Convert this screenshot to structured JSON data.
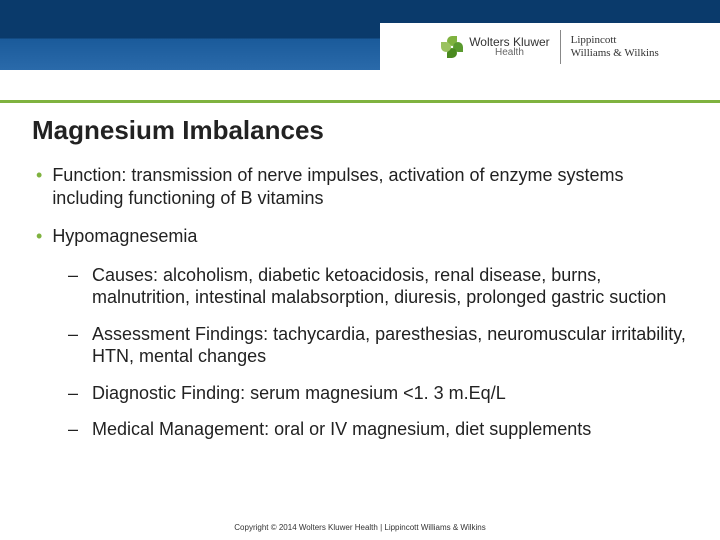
{
  "header": {
    "brand1_name": "Wolters Kluwer",
    "brand1_sub": "Health",
    "brand2_line1": "Lippincott",
    "brand2_line2": "Williams & Wilkins"
  },
  "title": "Magnesium Imbalances",
  "bullets": [
    {
      "text": "Function: transmission of nerve impulses, activation of enzyme systems including functioning of B vitamins",
      "sub": []
    },
    {
      "text": "Hypomagnesemia",
      "sub": [
        "Causes: alcoholism, diabetic ketoacidosis, renal disease, burns, malnutrition, intestinal malabsorption, diuresis, prolonged gastric suction",
        "Assessment Findings: tachycardia, paresthesias, neuromuscular irritability, HTN, mental changes",
        "Diagnostic Finding: serum magnesium <1. 3 m.Eq/L",
        "Medical Management: oral or IV magnesium, diet supplements"
      ]
    }
  ],
  "copyright": "Copyright © 2014 Wolters Kluwer Health | Lippincott Williams & Wilkins",
  "colors": {
    "accent_green": "#7fb23f",
    "header_dark": "#0a3a6b",
    "text": "#222222"
  }
}
